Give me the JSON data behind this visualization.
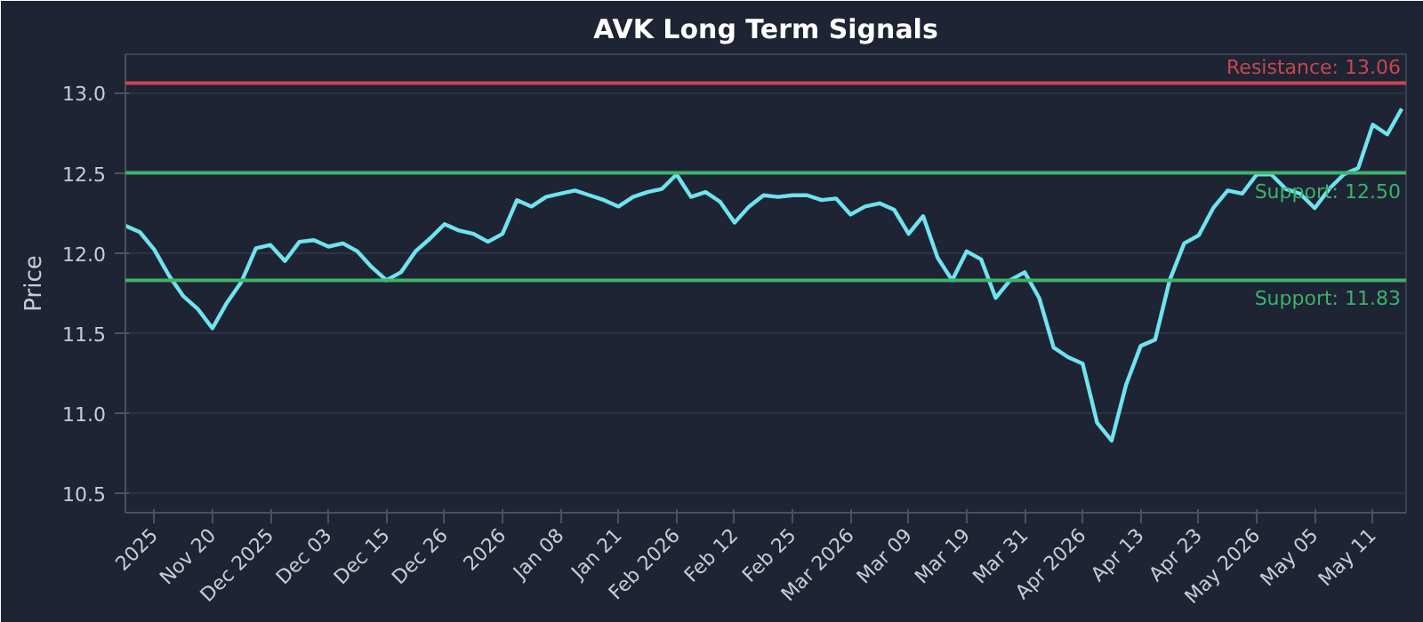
{
  "chart_data": {
    "type": "line",
    "title": "AVK Long Term Signals",
    "ylabel": "Price",
    "categories": [
      null,
      null,
      "2025",
      null,
      null,
      null,
      "Nov 20",
      null,
      null,
      null,
      "Dec 2025",
      null,
      null,
      null,
      "Dec 03",
      null,
      null,
      null,
      "Dec 15",
      null,
      null,
      null,
      "Dec 26",
      null,
      null,
      null,
      "2026",
      null,
      null,
      null,
      "Jan 08",
      null,
      null,
      null,
      "Jan 21",
      null,
      null,
      null,
      "Feb 2026",
      null,
      null,
      null,
      "Feb 12",
      null,
      null,
      null,
      "Feb 25",
      null,
      null,
      null,
      "Mar 2026",
      null,
      null,
      null,
      "Mar 09",
      null,
      null,
      null,
      "Mar 19",
      null,
      null,
      null,
      "Mar 31",
      null,
      null,
      null,
      "Apr 2026",
      null,
      null,
      null,
      "Apr 13",
      null,
      null,
      null,
      "Apr 23",
      null,
      null,
      null,
      "May 2026",
      null,
      null,
      null,
      "May 05",
      null,
      null,
      null,
      "May 11",
      null,
      null
    ],
    "series": [
      {
        "color": "#6fe3ee",
        "values": [
          12.17,
          12.13,
          12.02,
          11.86,
          11.73,
          11.65,
          11.53,
          11.69,
          11.82,
          12.03,
          12.05,
          11.95,
          12.07,
          12.08,
          12.04,
          12.06,
          12.01,
          11.91,
          11.83,
          11.88,
          12.01,
          12.09,
          12.18,
          12.14,
          12.12,
          12.07,
          12.12,
          12.33,
          12.29,
          12.35,
          12.37,
          12.39,
          12.36,
          12.33,
          12.29,
          12.35,
          12.38,
          12.4,
          12.49,
          12.35,
          12.38,
          12.32,
          12.19,
          12.29,
          12.36,
          12.35,
          12.36,
          12.36,
          12.33,
          12.34,
          12.24,
          12.29,
          12.31,
          12.27,
          12.12,
          12.23,
          11.97,
          11.83,
          12.01,
          11.96,
          11.72,
          11.83,
          11.88,
          11.72,
          11.41,
          11.35,
          11.31,
          10.94,
          10.83,
          11.18,
          11.42,
          11.46,
          11.83,
          12.06,
          12.11,
          12.28,
          12.39,
          12.37,
          12.49,
          12.49,
          12.4,
          12.37,
          12.28,
          12.4,
          12.49,
          12.53,
          12.8,
          12.74,
          12.9
        ]
      }
    ],
    "ylim": [
      10.38,
      13.24
    ],
    "yticks": [
      {
        "value": 10.5,
        "label": "10.5"
      },
      {
        "value": 11,
        "label": "11.0"
      },
      {
        "value": 11.5,
        "label": "11.5"
      },
      {
        "value": 12,
        "label": "12.0"
      },
      {
        "value": 12.5,
        "label": "12.5"
      },
      {
        "value": 13,
        "label": "13.0"
      }
    ],
    "ref_lines": [
      {
        "axis": "y",
        "value": 13.06,
        "label": "Resistance: 13.06",
        "color": "#c9474f"
      },
      {
        "axis": "y",
        "value": 12.5,
        "label": "Support: 12.50",
        "color": "#3cb36a"
      },
      {
        "axis": "y",
        "value": 11.83,
        "label": "Support: 11.83",
        "color": "#3cb36a"
      }
    ],
    "grid": "y",
    "marker": "none",
    "line_style": "solid"
  }
}
